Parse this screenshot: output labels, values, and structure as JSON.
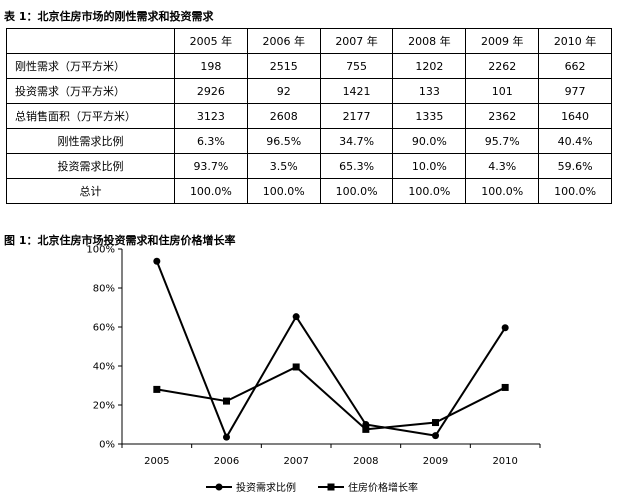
{
  "table_caption": "表 1：北京住房市场的刚性需求和投资需求",
  "chart_caption": "图 1：北京住房市场投资需求和住房价格增长率",
  "table": {
    "header": [
      "",
      "2005 年",
      "2006 年",
      "2007 年",
      "2008 年",
      "2009 年",
      "2010 年"
    ],
    "rows": [
      {
        "label": "刚性需求（万平方米）",
        "values": [
          "198",
          "2515",
          "755",
          "1202",
          "2262",
          "662"
        ]
      },
      {
        "label": "投资需求（万平方米）",
        "values": [
          "2926",
          "92",
          "1421",
          "133",
          "101",
          "977"
        ]
      },
      {
        "label": "总销售面积（万平方米）",
        "values": [
          "3123",
          "2608",
          "2177",
          "1335",
          "2362",
          "1640"
        ]
      },
      {
        "label": "刚性需求比例",
        "values": [
          "6.3%",
          "96.5%",
          "34.7%",
          "90.0%",
          "95.7%",
          "40.4%"
        ]
      },
      {
        "label": "投资需求比例",
        "values": [
          "93.7%",
          "3.5%",
          "65.3%",
          "10.0%",
          "4.3%",
          "59.6%"
        ]
      },
      {
        "label": "总计",
        "values": [
          "100.0%",
          "100.0%",
          "100.0%",
          "100.0%",
          "100.0%",
          "100.0%"
        ]
      }
    ]
  },
  "chart_data": {
    "type": "line",
    "x": [
      "2005",
      "2006",
      "2007",
      "2008",
      "2009",
      "2010"
    ],
    "y_ticks": [
      "0%",
      "20%",
      "40%",
      "60%",
      "80%",
      "100%"
    ],
    "ylim": [
      0,
      100
    ],
    "grid": false,
    "legend_position": "bottom",
    "series": [
      {
        "name": "投资需求比例",
        "marker": "circle",
        "values": [
          93.7,
          3.5,
          65.3,
          10.0,
          4.3,
          59.6
        ]
      },
      {
        "name": "住房价格增长率",
        "marker": "square",
        "values": [
          28,
          22,
          39.5,
          7.5,
          11,
          29
        ]
      }
    ]
  }
}
